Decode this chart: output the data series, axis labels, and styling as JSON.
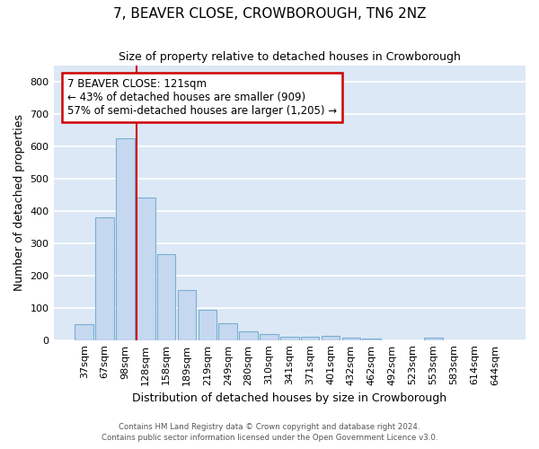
{
  "title": "7, BEAVER CLOSE, CROWBOROUGH, TN6 2NZ",
  "subtitle": "Size of property relative to detached houses in Crowborough",
  "xlabel": "Distribution of detached houses by size in Crowborough",
  "ylabel": "Number of detached properties",
  "categories": [
    "37sqm",
    "67sqm",
    "98sqm",
    "128sqm",
    "158sqm",
    "189sqm",
    "219sqm",
    "249sqm",
    "280sqm",
    "310sqm",
    "341sqm",
    "371sqm",
    "401sqm",
    "432sqm",
    "462sqm",
    "492sqm",
    "523sqm",
    "553sqm",
    "583sqm",
    "614sqm",
    "644sqm"
  ],
  "values": [
    48,
    381,
    624,
    440,
    265,
    155,
    95,
    52,
    28,
    18,
    10,
    10,
    14,
    8,
    5,
    0,
    0,
    7,
    0,
    0,
    0
  ],
  "bar_color": "#c5d8ef",
  "bar_edge_color": "#7aaed4",
  "background_color": "#dce8f5",
  "grid_color": "#ffffff",
  "vline_color": "#cc0000",
  "vline_position": 3,
  "annotation_text": "7 BEAVER CLOSE: 121sqm\n← 43% of detached houses are smaller (909)\n57% of semi-detached houses are larger (1,205) →",
  "annotation_box_edgecolor": "#cc0000",
  "ylim": [
    0,
    850
  ],
  "yticks": [
    0,
    100,
    200,
    300,
    400,
    500,
    600,
    700,
    800
  ],
  "footnote1": "Contains HM Land Registry data © Crown copyright and database right 2024.",
  "footnote2": "Contains public sector information licensed under the Open Government Licence v3.0.",
  "title_fontsize": 11,
  "subtitle_fontsize": 9,
  "xlabel_fontsize": 9,
  "ylabel_fontsize": 9,
  "tick_fontsize": 8,
  "annot_fontsize": 8.5
}
